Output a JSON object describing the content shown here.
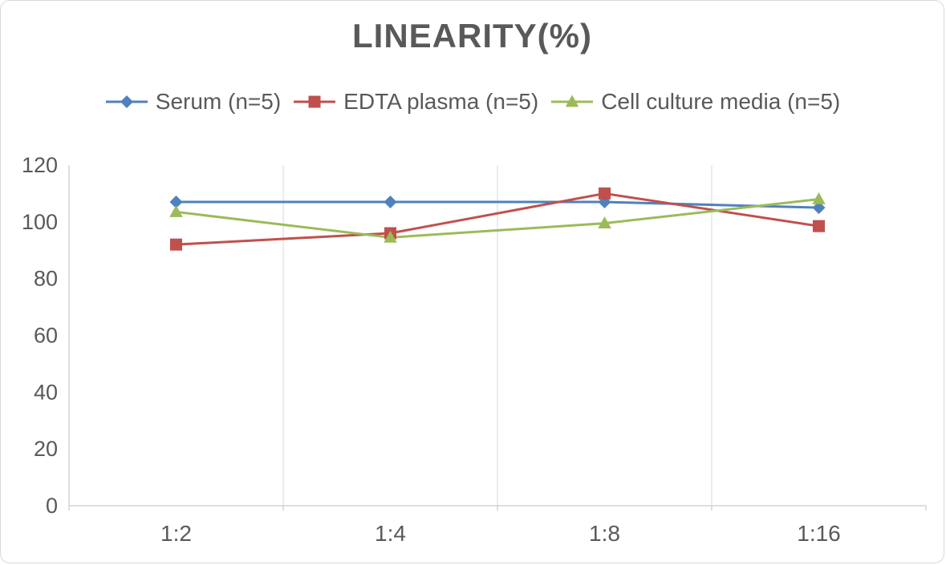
{
  "title": "LINEARITY(%)",
  "colors": {
    "title_text": "#595959",
    "axis_text": "#595959",
    "gridline": "#d9d9d9",
    "axis_line": "#bfbfbf"
  },
  "chart_data": {
    "type": "line",
    "title": "LINEARITY(%)",
    "categories": [
      "1:2",
      "1:4",
      "1:8",
      "1:16"
    ],
    "series": [
      {
        "name": "Serum (n=5)",
        "color": "#4F81BD",
        "marker": "diamond",
        "values": [
          107,
          107,
          107,
          105
        ]
      },
      {
        "name": "EDTA plasma (n=5)",
        "color": "#C0504D",
        "marker": "square",
        "values": [
          92,
          96,
          110,
          98.5
        ]
      },
      {
        "name": "Cell culture media (n=5)",
        "color": "#9BBB59",
        "marker": "triangle",
        "values": [
          103.5,
          94.5,
          99.5,
          108
        ]
      }
    ],
    "ylim": [
      0,
      120
    ],
    "yticks": [
      0,
      20,
      40,
      60,
      80,
      100,
      120
    ],
    "grid": "vertical",
    "legend_position": "top",
    "xlabel": "",
    "ylabel": ""
  }
}
